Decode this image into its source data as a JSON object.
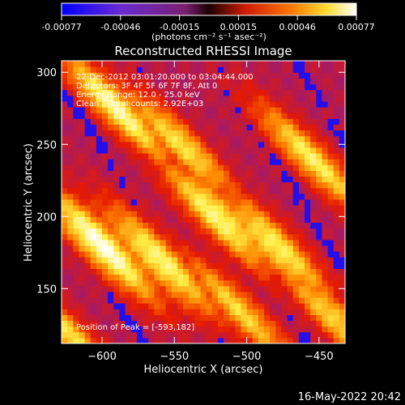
{
  "colorbar": {
    "ticks": [
      "-0.00077",
      "-0.00046",
      "-0.00015",
      "0.00015",
      "0.00046",
      "0.00077"
    ],
    "units": "(photons cm⁻² s⁻¹ asec⁻²)"
  },
  "chart_data": {
    "type": "heatmap",
    "title": "Reconstructed RHESSI Image",
    "xlabel": "Heliocentric X (arcsec)",
    "ylabel": "Heliocentric Y (arcsec)",
    "xlim": [
      -628,
      -432
    ],
    "ylim": [
      112,
      308
    ],
    "xticks": [
      -600,
      -550,
      -500,
      -450
    ],
    "yticks": [
      150,
      200,
      250,
      300
    ],
    "xtick_labels": [
      "−600",
      "−550",
      "−500",
      "−450"
    ],
    "ytick_labels": [
      "150",
      "200",
      "250",
      "300"
    ],
    "color_range": [
      -0.00077,
      0.00077
    ],
    "colormap": [
      "#0000ff",
      "#7733bb",
      "#a31a6b",
      "#e61a00",
      "#ff8800",
      "#ffee44",
      "#ffffff"
    ],
    "peak": [
      -593,
      182
    ],
    "info": [
      "22-Dec-2012 03:01:20.000 to 03:04:44.000",
      "Detectors: 3F 4F 5F 6F 7F 8F, Att 0",
      "Energy Range: 12.0 - 25.0 keV",
      "Clean    Total counts: 2.92E+03"
    ],
    "peak_label": "Position of Peak = [-593,182]"
  },
  "timestamp": "16-May-2022 20:42"
}
